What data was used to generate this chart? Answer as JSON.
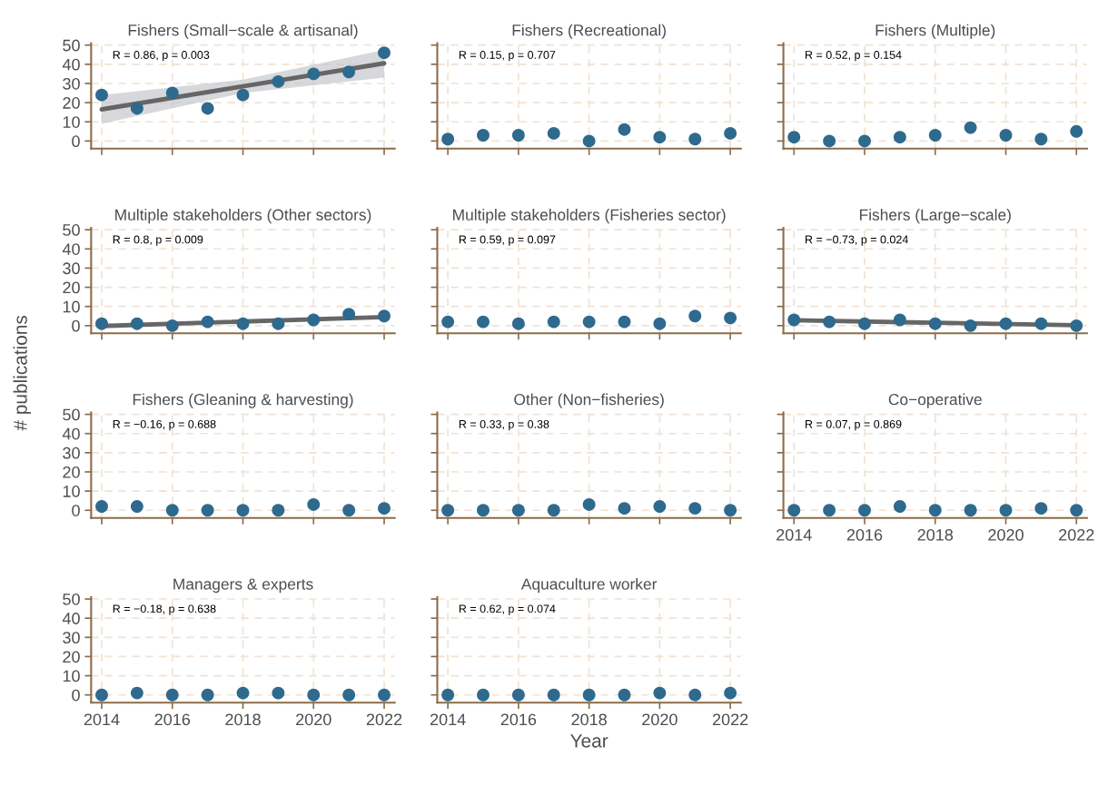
{
  "chart_data": [
    {
      "type": "scatter",
      "title": "Fishers (Small−scale & artisanal)",
      "x": [
        2014,
        2015,
        2016,
        2017,
        2018,
        2019,
        2020,
        2021,
        2022
      ],
      "xlim": [
        2013.7,
        2022.3
      ],
      "xticks": [
        2014,
        2016,
        2018,
        2020,
        2022
      ],
      "ylim": [
        -4,
        51
      ],
      "yticks": [
        0,
        10,
        20,
        30,
        40,
        50
      ],
      "grid": true,
      "marker": "circle",
      "tick_labels": "y",
      "annotations": [
        "R = 0.86, p = 0.003"
      ],
      "series": [
        {
          "type": "scatter",
          "color": "#2e6a8e",
          "values": [
            24,
            17,
            25,
            17,
            24,
            31,
            35,
            36,
            46
          ]
        },
        {
          "type": "line",
          "marker": "none",
          "color": "#666666",
          "x": [
            2014,
            2018,
            2022
          ],
          "values": [
            16.5,
            28.5,
            40.5
          ],
          "lower": [
            9,
            25,
            33
          ],
          "upper": [
            24,
            32,
            47.5
          ]
        }
      ]
    },
    {
      "type": "scatter",
      "title": "Fishers (Recreational)",
      "x": [
        2014,
        2015,
        2016,
        2017,
        2018,
        2019,
        2020,
        2021,
        2022
      ],
      "xlim": [
        2013.7,
        2022.3
      ],
      "xticks": [
        2014,
        2016,
        2018,
        2020,
        2022
      ],
      "ylim": [
        -4,
        51
      ],
      "yticks": [
        0,
        10,
        20,
        30,
        40,
        50
      ],
      "grid": true,
      "marker": "circle",
      "tick_labels": false,
      "annotations": [
        "R = 0.15, p = 0.707"
      ],
      "series": [
        {
          "type": "scatter",
          "color": "#2e6a8e",
          "values": [
            1,
            3,
            3,
            4,
            0,
            6,
            2,
            1,
            4
          ]
        }
      ]
    },
    {
      "type": "scatter",
      "title": "Fishers (Multiple)",
      "x": [
        2014,
        2015,
        2016,
        2017,
        2018,
        2019,
        2020,
        2021,
        2022
      ],
      "xlim": [
        2013.7,
        2022.3
      ],
      "xticks": [
        2014,
        2016,
        2018,
        2020,
        2022
      ],
      "ylim": [
        -4,
        51
      ],
      "yticks": [
        0,
        10,
        20,
        30,
        40,
        50
      ],
      "grid": true,
      "marker": "circle",
      "tick_labels": false,
      "annotations": [
        "R = 0.52, p = 0.154"
      ],
      "series": [
        {
          "type": "scatter",
          "color": "#2e6a8e",
          "values": [
            2,
            0,
            0,
            2,
            3,
            7,
            3,
            1,
            5
          ]
        }
      ]
    },
    {
      "type": "scatter",
      "title": "Multiple stakeholders (Other sectors)",
      "ylabel": "# publications",
      "x": [
        2014,
        2015,
        2016,
        2017,
        2018,
        2019,
        2020,
        2021,
        2022
      ],
      "xlim": [
        2013.7,
        2022.3
      ],
      "xticks": [
        2014,
        2016,
        2018,
        2020,
        2022
      ],
      "ylim": [
        -4,
        51
      ],
      "yticks": [
        0,
        10,
        20,
        30,
        40,
        50
      ],
      "grid": true,
      "marker": "circle",
      "tick_labels": "y",
      "annotations": [
        "R = 0.8, p = 0.009"
      ],
      "series": [
        {
          "type": "scatter",
          "color": "#2e6a8e",
          "values": [
            1,
            1,
            0,
            2,
            1,
            1,
            3,
            6,
            5
          ]
        },
        {
          "type": "line",
          "marker": "none",
          "color": "#666666",
          "x": [
            2014,
            2022
          ],
          "values": [
            -0.2,
            4.5
          ]
        }
      ]
    },
    {
      "type": "scatter",
      "title": "Multiple stakeholders (Fisheries sector)",
      "x": [
        2014,
        2015,
        2016,
        2017,
        2018,
        2019,
        2020,
        2021,
        2022
      ],
      "xlim": [
        2013.7,
        2022.3
      ],
      "xticks": [
        2014,
        2016,
        2018,
        2020,
        2022
      ],
      "ylim": [
        -4,
        51
      ],
      "yticks": [
        0,
        10,
        20,
        30,
        40,
        50
      ],
      "grid": true,
      "marker": "circle",
      "tick_labels": false,
      "annotations": [
        "R = 0.59, p = 0.097"
      ],
      "series": [
        {
          "type": "scatter",
          "color": "#2e6a8e",
          "values": [
            2,
            2,
            1,
            2,
            2,
            2,
            1,
            5,
            4
          ]
        }
      ]
    },
    {
      "type": "scatter",
      "title": "Fishers (Large−scale)",
      "x": [
        2014,
        2015,
        2016,
        2017,
        2018,
        2019,
        2020,
        2021,
        2022
      ],
      "xlim": [
        2013.7,
        2022.3
      ],
      "xticks": [
        2014,
        2016,
        2018,
        2020,
        2022
      ],
      "ylim": [
        -4,
        51
      ],
      "yticks": [
        0,
        10,
        20,
        30,
        40,
        50
      ],
      "grid": true,
      "marker": "circle",
      "tick_labels": false,
      "annotations": [
        "R = −0.73, p = 0.024"
      ],
      "series": [
        {
          "type": "scatter",
          "color": "#2e6a8e",
          "values": [
            3,
            2,
            1,
            3,
            1,
            0,
            1,
            1,
            0
          ]
        },
        {
          "type": "line",
          "marker": "none",
          "color": "#666666",
          "x": [
            2014,
            2022
          ],
          "values": [
            2.8,
            0.2
          ]
        }
      ]
    },
    {
      "type": "scatter",
      "title": "Fishers (Gleaning & harvesting)",
      "x": [
        2014,
        2015,
        2016,
        2017,
        2018,
        2019,
        2020,
        2021,
        2022
      ],
      "xlim": [
        2013.7,
        2022.3
      ],
      "xticks": [
        2014,
        2016,
        2018,
        2020,
        2022
      ],
      "ylim": [
        -4,
        51
      ],
      "yticks": [
        0,
        10,
        20,
        30,
        40,
        50
      ],
      "grid": true,
      "marker": "circle",
      "tick_labels": "y",
      "annotations": [
        "R = −0.16, p = 0.688"
      ],
      "series": [
        {
          "type": "scatter",
          "color": "#2e6a8e",
          "values": [
            2,
            2,
            0,
            0,
            0,
            0,
            3,
            0,
            1
          ]
        }
      ]
    },
    {
      "type": "scatter",
      "title": "Other (Non−fisheries)",
      "x": [
        2014,
        2015,
        2016,
        2017,
        2018,
        2019,
        2020,
        2021,
        2022
      ],
      "xlim": [
        2013.7,
        2022.3
      ],
      "xticks": [
        2014,
        2016,
        2018,
        2020,
        2022
      ],
      "ylim": [
        -4,
        51
      ],
      "yticks": [
        0,
        10,
        20,
        30,
        40,
        50
      ],
      "grid": true,
      "marker": "circle",
      "tick_labels": false,
      "annotations": [
        "R = 0.33, p = 0.38"
      ],
      "series": [
        {
          "type": "scatter",
          "color": "#2e6a8e",
          "values": [
            0,
            0,
            0,
            0,
            3,
            1,
            2,
            1,
            0
          ]
        }
      ]
    },
    {
      "type": "scatter",
      "title": "Co−operative",
      "x": [
        2014,
        2015,
        2016,
        2017,
        2018,
        2019,
        2020,
        2021,
        2022
      ],
      "xlim": [
        2013.7,
        2022.3
      ],
      "xticks": [
        2014,
        2016,
        2018,
        2020,
        2022
      ],
      "ylim": [
        -4,
        51
      ],
      "yticks": [
        0,
        10,
        20,
        30,
        40,
        50
      ],
      "grid": true,
      "marker": "circle",
      "tick_labels": "x",
      "annotations": [
        "R = 0.07, p = 0.869"
      ],
      "series": [
        {
          "type": "scatter",
          "color": "#2e6a8e",
          "values": [
            0,
            0,
            0,
            2,
            0,
            0,
            0,
            1,
            0
          ]
        }
      ]
    },
    {
      "type": "scatter",
      "title": "Managers & experts",
      "x": [
        2014,
        2015,
        2016,
        2017,
        2018,
        2019,
        2020,
        2021,
        2022
      ],
      "xlim": [
        2013.7,
        2022.3
      ],
      "xticks": [
        2014,
        2016,
        2018,
        2020,
        2022
      ],
      "ylim": [
        -4,
        51
      ],
      "yticks": [
        0,
        10,
        20,
        30,
        40,
        50
      ],
      "grid": true,
      "marker": "circle",
      "annotations": [
        "R = −0.18, p = 0.638"
      ],
      "series": [
        {
          "type": "scatter",
          "color": "#2e6a8e",
          "values": [
            0,
            1,
            0,
            0,
            1,
            1,
            0,
            0,
            0
          ]
        }
      ]
    },
    {
      "type": "scatter",
      "title": "Aquaculture worker",
      "xlabel": "Year",
      "x": [
        2014,
        2015,
        2016,
        2017,
        2018,
        2019,
        2020,
        2021,
        2022
      ],
      "xlim": [
        2013.7,
        2022.3
      ],
      "xticks": [
        2014,
        2016,
        2018,
        2020,
        2022
      ],
      "ylim": [
        -4,
        51
      ],
      "yticks": [
        0,
        10,
        20,
        30,
        40,
        50
      ],
      "grid": true,
      "marker": "circle",
      "tick_labels": "x",
      "annotations": [
        "R = 0.62, p = 0.074"
      ],
      "series": [
        {
          "type": "scatter",
          "color": "#2e6a8e",
          "values": [
            0,
            0,
            0,
            0,
            0,
            0,
            1,
            0,
            1
          ]
        }
      ]
    }
  ]
}
